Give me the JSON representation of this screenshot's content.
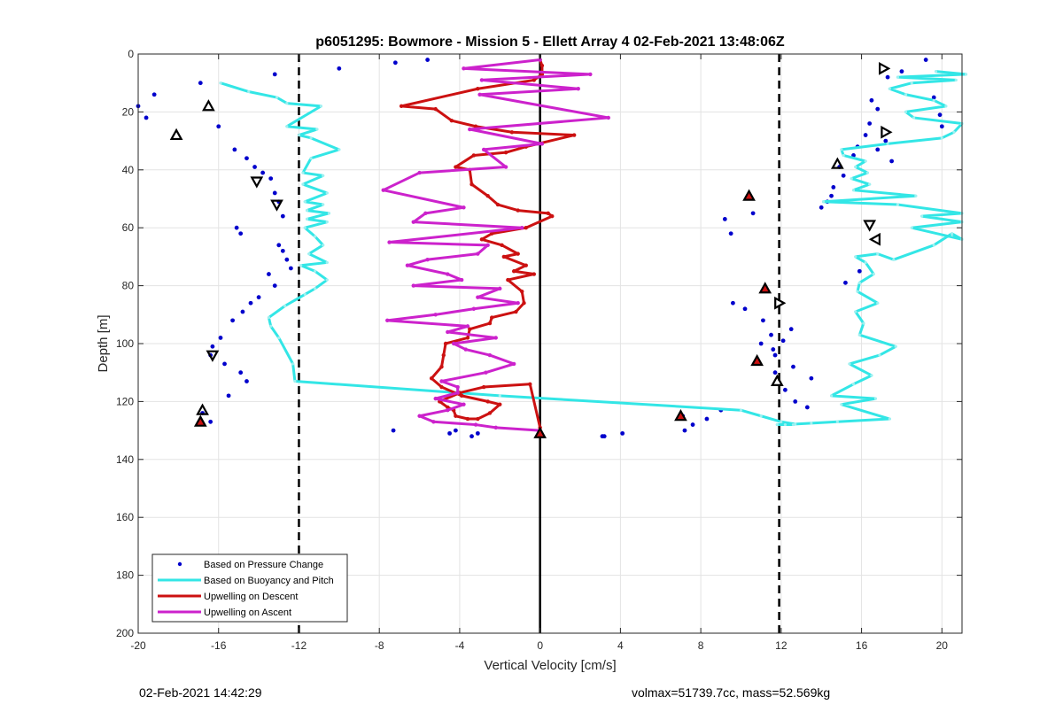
{
  "chart_data": {
    "type": "scatter",
    "title": "p6051295: Bowmore - Mission 5 - Ellett Array 4 02-Feb-2021 13:48:06Z",
    "xlabel": "Vertical Velocity [cm/s]",
    "ylabel": "Depth [m]",
    "xlim": [
      -20,
      21
    ],
    "ylim": [
      0,
      200
    ],
    "y_reversed": true,
    "xticks": [
      -20,
      -16,
      -12,
      -8,
      -4,
      0,
      4,
      8,
      12,
      16,
      20
    ],
    "yticks": [
      0,
      20,
      40,
      60,
      80,
      100,
      120,
      140,
      160,
      180,
      200
    ],
    "grid": true,
    "legend_position": "bottom-left",
    "reference_lines": {
      "dashed_x": [
        -12,
        11.9
      ],
      "solid_x": [
        0
      ]
    },
    "series": [
      {
        "name": "Based on Pressure Change",
        "style": "points",
        "color": "#0000cc",
        "x": [
          -19.2,
          -20,
          -19.6,
          -16.9,
          -13.2,
          -16,
          -15.2,
          -14.6,
          -14.2,
          -13.8,
          -13.4,
          -13.2,
          -13,
          -12.8,
          -15.1,
          -14.9,
          -13,
          -12.8,
          -12.6,
          -12.4,
          -13.5,
          -13.2,
          -14,
          -14.4,
          -14.8,
          -15.3,
          -15.9,
          -16.3,
          -16.4,
          -15.7,
          -14.9,
          -14.6,
          -15.5,
          -16.4,
          -16.8,
          -10,
          -7.2,
          -5.6,
          -4.5,
          -4.2,
          -3.4,
          -3.1,
          -7.3,
          3.1,
          3.2,
          4.1,
          7.6,
          7.1,
          7.2,
          8.3,
          9,
          10.6,
          9.2,
          9.5,
          9.6,
          10.2,
          11.1,
          12.5,
          11.5,
          12.1,
          11,
          11.6,
          11.7,
          12.6,
          13.5,
          11.7,
          12.2,
          12.7,
          13.3,
          14,
          14.3,
          14.5,
          14.6,
          15.1,
          14.9,
          15.6,
          15.8,
          16.2,
          16.4,
          16.8,
          16.5,
          17.3,
          18,
          19.2,
          19.6,
          19.9,
          20,
          17.2,
          16.8,
          17.5,
          15.9,
          15.2
        ],
        "y": [
          14,
          18,
          22,
          10,
          7,
          25,
          33,
          36,
          39,
          41,
          43,
          48,
          51,
          56,
          60,
          62,
          66,
          68,
          71,
          74,
          76,
          80,
          84,
          86,
          89,
          92,
          98,
          101,
          104,
          107,
          110,
          113,
          118,
          127,
          124,
          5,
          3,
          2,
          131,
          130,
          132,
          131,
          130,
          132,
          132,
          131,
          128,
          125,
          130,
          126,
          123,
          55,
          57,
          62,
          86,
          88,
          92,
          95,
          97,
          99,
          100,
          102,
          104,
          108,
          112,
          110,
          116,
          120,
          122,
          53,
          51,
          49,
          46,
          42,
          39,
          35,
          32,
          28,
          24,
          19,
          16,
          8,
          6,
          2,
          15,
          21,
          25,
          30,
          33,
          37,
          75,
          79
        ]
      },
      {
        "name": "Based on Buoyancy and Pitch",
        "style": "line",
        "color": "#33e6e6",
        "x": [
          -15.9,
          -14.5,
          -13.1,
          -12.6,
          -10.9,
          -12.6,
          -11.1,
          -12,
          -11.4,
          -10,
          -11.4,
          -11.8,
          -10.8,
          -11.8,
          -10.6,
          -11.7,
          -10.8,
          -11.6,
          -10.5,
          -11.6,
          -10.6,
          -11.7,
          -11.2,
          -10.8,
          -11.5,
          -10.6,
          -11.9,
          -11.2,
          -10.6,
          -11.2,
          -11.7,
          -12.7,
          -13.5,
          -13.4,
          -13,
          -12.3,
          -12.2,
          -2,
          10,
          11,
          12,
          12.7,
          12.6,
          11.8,
          12.2,
          13.5,
          14.8,
          17.4,
          15,
          16.7,
          14.5,
          15.6,
          16.5,
          15.4,
          16.9,
          17.7,
          15.9,
          16.1,
          15.7,
          16.8,
          15.8,
          15.9,
          16.6,
          16.2,
          15.7,
          16.8,
          17.6,
          19.6,
          20.5,
          21,
          18.5,
          21,
          19,
          21,
          17.8,
          14.1,
          18.7,
          15.6,
          16.4,
          15.5,
          16.3,
          15.7,
          16.2,
          15.1,
          15,
          17.3,
          20,
          20.6,
          21,
          18.6,
          18.2,
          20.2,
          19.6,
          18.2,
          17.4,
          18.5,
          20.7,
          17.8,
          21.2,
          19.7
        ],
        "y": [
          10,
          13,
          15,
          17,
          18,
          25,
          26,
          28,
          29,
          33,
          36,
          41,
          42,
          45,
          48,
          51,
          52,
          54,
          55,
          57,
          58,
          60,
          63,
          66,
          69,
          72,
          73,
          75,
          78,
          81,
          83,
          87,
          91,
          94,
          98,
          107,
          113,
          118,
          123,
          125,
          127,
          127.8,
          128,
          128,
          128,
          127.5,
          127,
          126,
          121,
          119,
          118,
          114,
          111,
          107,
          104,
          101,
          97,
          93,
          89,
          86,
          82,
          79,
          76,
          72,
          70,
          69,
          71,
          66,
          62,
          64,
          60,
          58,
          56,
          55,
          52,
          51,
          49,
          47,
          45,
          43,
          41,
          39,
          37,
          35,
          33,
          31,
          29,
          27,
          24,
          22,
          20,
          18,
          16,
          14,
          12,
          10,
          9,
          8,
          7,
          6
        ]
      },
      {
        "name": "Upwelling on Descent",
        "style": "line-markers",
        "color": "#cc1111",
        "x": [
          0,
          0.1,
          0.1,
          -0.3,
          -3.1,
          -6.9,
          -5.2,
          -4.4,
          -3.2,
          -1.4,
          1.7,
          -0.7,
          -1.7,
          -3.3,
          -4.2,
          -3.5,
          -3.4,
          -2.6,
          -2.1,
          -1.1,
          0.4,
          0.6,
          -0.7,
          -2.4,
          -2.9,
          -1.9,
          -1.1,
          -1.8,
          -0.7,
          -1.3,
          -0.3,
          -1.6,
          -0.9,
          -0.8,
          -1.2,
          -2.4,
          -2.5,
          -3.5,
          -3.6,
          -4.7,
          -4.8,
          -4.9,
          -5.4,
          -4.9,
          -3.9,
          -2.6,
          -2,
          -2.5,
          -3.1,
          -3.6,
          -4.2,
          -4.3,
          -4.6,
          -5,
          -4,
          -2.8,
          -0.5,
          0
        ],
        "y": [
          2,
          4,
          7,
          9,
          12,
          18,
          19,
          23,
          25,
          27,
          28,
          32,
          34,
          35,
          39,
          40,
          45,
          49,
          52,
          54,
          55,
          56,
          60,
          62,
          64,
          66,
          69,
          70,
          73,
          75,
          76,
          78,
          82,
          86,
          89,
          91,
          93,
          95,
          98,
          100,
          104,
          108,
          112,
          115,
          118,
          120,
          121,
          124,
          126,
          126,
          125,
          123,
          122,
          120,
          117,
          115,
          114,
          129
        ]
      },
      {
        "name": "Upwelling on Ascent",
        "style": "line-markers",
        "color": "#cc22cc",
        "x": [
          0,
          -3.8,
          2.5,
          -2.9,
          1.9,
          -3,
          3.4,
          -3.5,
          0.1,
          -2.8,
          -1.7,
          -6,
          -7.8,
          -3.8,
          -5.7,
          -6.3,
          -0.9,
          -7.5,
          -2.6,
          -3.1,
          -5.6,
          -6.6,
          -4.6,
          -3.9,
          -6.3,
          -2,
          -3.1,
          -1.1,
          -3.3,
          -5.2,
          -7.6,
          -3.6,
          -4.6,
          -2.2,
          -4.3,
          -3.7,
          -2.5,
          -1.3,
          -2.7,
          -4.9,
          -4.1,
          -4.1,
          -5.2,
          -3.8,
          -4.6,
          -6,
          -5.3,
          -3.2,
          -2.2,
          0
        ],
        "y": [
          2,
          5,
          7,
          9,
          12,
          14,
          22,
          26,
          31,
          33,
          39,
          41,
          47,
          53,
          55,
          58,
          60,
          65,
          66,
          69,
          71,
          73,
          76,
          78,
          80,
          81,
          84,
          86,
          88,
          90,
          92,
          94,
          96,
          98,
          100,
          102,
          104,
          107,
          110,
          113,
          115,
          117,
          119,
          121,
          123,
          125,
          127,
          128,
          129,
          130
        ]
      },
      {
        "name": "",
        "style": "triangle-up-open",
        "color": "#000000",
        "x": [
          -16.5,
          -18.1,
          14.8,
          11.8,
          -16.8
        ],
        "y": [
          18,
          28,
          38,
          113,
          123
        ]
      },
      {
        "name": "",
        "style": "triangle-down-open",
        "color": "#000000",
        "x": [
          -14.1,
          -13.1,
          -16.3,
          16.4
        ],
        "y": [
          44,
          52,
          104,
          59
        ]
      },
      {
        "name": "",
        "style": "triangle-right-open",
        "color": "#000000",
        "x": [
          17.1,
          17.2,
          11.9
        ],
        "y": [
          5,
          27,
          86
        ]
      },
      {
        "name": "",
        "style": "triangle-left-open",
        "color": "#000000",
        "x": [
          16.7
        ],
        "y": [
          64
        ]
      },
      {
        "name": "",
        "style": "triangle-up-filled",
        "color": "#cc1111",
        "x": [
          10.4,
          11.2,
          10.8,
          7,
          0,
          -16.9
        ],
        "y": [
          49,
          81,
          106,
          125,
          131,
          127
        ]
      }
    ]
  },
  "footer": {
    "left": "02-Feb-2021 14:42:29",
    "right": "volmax=51739.7cc, mass=52.569kg"
  }
}
